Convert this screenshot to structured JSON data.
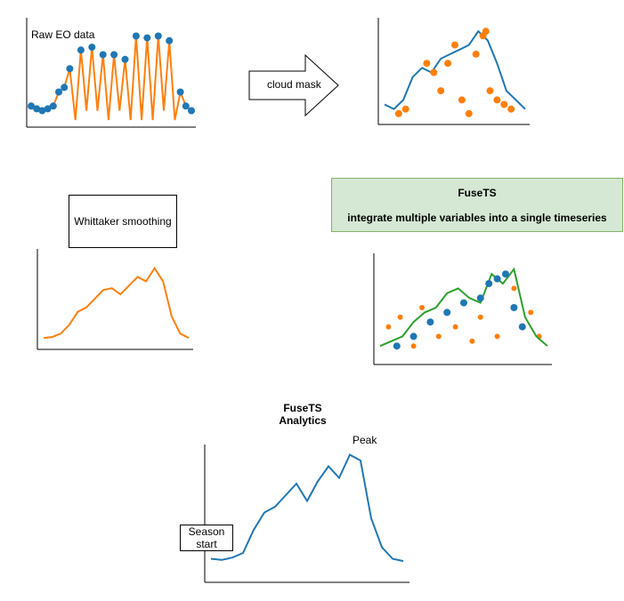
{
  "labels": {
    "raw": "Raw EO data",
    "cloud": "cloud mask",
    "whittaker": "Whittaker smoothing",
    "fusets_title": "FuseTS",
    "fusets_sub": "integrate multiple variables into a single timeseries",
    "analytics_title1": "FuseTS",
    "analytics_title2": "Analytics",
    "peak": "Peak",
    "season_start1": "Season",
    "season_start2": "start"
  },
  "colors": {
    "blue": "#1f77b4",
    "orange": "#ff7f0e",
    "green": "#2ca02c"
  },
  "chart_data": [
    {
      "type": "line",
      "panel": "raw-eo",
      "series": [
        {
          "values": [
            0.15,
            0.12,
            0.1,
            0.12,
            0.15,
            0.3,
            0.35,
            0.55,
            0.0,
            0.75,
            0.1,
            0.78,
            0.1,
            0.7,
            0.0,
            0.7,
            0.1,
            0.65,
            0.0,
            0.9,
            0.0,
            0.88,
            0.0,
            0.9,
            0.1,
            0.85,
            0.0,
            0.3,
            0.15,
            0.1
          ]
        },
        {
          "values": [
            0.15,
            0.12,
            0.1,
            0.12,
            0.15,
            0.3,
            0.35,
            0.55,
            null,
            0.75,
            null,
            0.78,
            null,
            0.7,
            null,
            0.7,
            null,
            0.65,
            null,
            0.9,
            null,
            0.88,
            null,
            0.9,
            null,
            0.85,
            null,
            0.3,
            0.15,
            0.1
          ]
        }
      ]
    },
    {
      "type": "scatter",
      "panel": "cloud-mask",
      "line": [
        0.15,
        0.1,
        0.2,
        0.45,
        0.55,
        0.5,
        0.65,
        0.7,
        0.75,
        0.8,
        0.95,
        0.85,
        0.6,
        0.3,
        0.2,
        0.1
      ],
      "points": [
        [
          0.1,
          0.05
        ],
        [
          0.15,
          0.1
        ],
        [
          0.3,
          0.6
        ],
        [
          0.35,
          0.5
        ],
        [
          0.4,
          0.3
        ],
        [
          0.45,
          0.6
        ],
        [
          0.5,
          0.8
        ],
        [
          0.55,
          0.2
        ],
        [
          0.6,
          0.05
        ],
        [
          0.65,
          0.7
        ],
        [
          0.7,
          0.9
        ],
        [
          0.72,
          0.95
        ],
        [
          0.75,
          0.3
        ],
        [
          0.8,
          0.2
        ],
        [
          0.85,
          0.15
        ],
        [
          0.9,
          0.1
        ]
      ]
    },
    {
      "type": "line",
      "panel": "whittaker",
      "values": [
        0.05,
        0.06,
        0.1,
        0.2,
        0.35,
        0.4,
        0.5,
        0.6,
        0.62,
        0.55,
        0.65,
        0.75,
        0.7,
        0.85,
        0.7,
        0.3,
        0.1,
        0.05
      ]
    },
    {
      "type": "scatter",
      "panel": "fusets",
      "green": [
        0.1,
        0.15,
        0.2,
        0.35,
        0.45,
        0.5,
        0.65,
        0.7,
        0.6,
        0.55,
        0.85,
        0.75,
        0.9,
        0.4,
        0.2,
        0.1
      ],
      "blue_points": [
        [
          0.1,
          0.1
        ],
        [
          0.2,
          0.2
        ],
        [
          0.3,
          0.35
        ],
        [
          0.4,
          0.45
        ],
        [
          0.5,
          0.55
        ],
        [
          0.6,
          0.6
        ],
        [
          0.65,
          0.75
        ],
        [
          0.7,
          0.8
        ],
        [
          0.75,
          0.85
        ],
        [
          0.8,
          0.5
        ],
        [
          0.85,
          0.3
        ]
      ],
      "orange_points": [
        [
          0.05,
          0.3
        ],
        [
          0.12,
          0.4
        ],
        [
          0.2,
          0.1
        ],
        [
          0.25,
          0.5
        ],
        [
          0.35,
          0.2
        ],
        [
          0.45,
          0.3
        ],
        [
          0.55,
          0.15
        ],
        [
          0.6,
          0.4
        ],
        [
          0.7,
          0.2
        ],
        [
          0.8,
          0.7
        ],
        [
          0.9,
          0.45
        ],
        [
          0.95,
          0.2
        ]
      ]
    },
    {
      "type": "line",
      "panel": "analytics",
      "values": [
        0.05,
        0.04,
        0.06,
        0.1,
        0.3,
        0.45,
        0.5,
        0.6,
        0.7,
        0.55,
        0.72,
        0.85,
        0.75,
        0.95,
        0.9,
        0.4,
        0.15,
        0.05,
        0.03
      ]
    }
  ]
}
